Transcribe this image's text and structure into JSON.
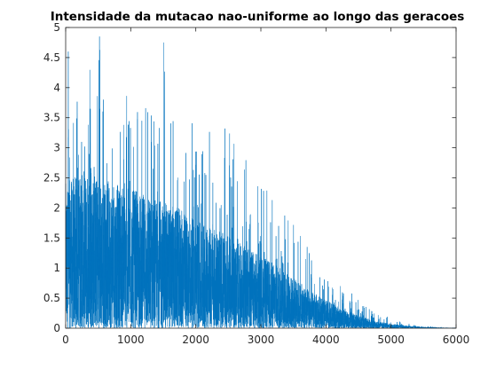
{
  "chart_data": {
    "type": "line",
    "title": "Intensidade da mutacao nao-uniforme ao longo das geracoes",
    "xlabel": "",
    "ylabel": "",
    "xlim": [
      0,
      6000
    ],
    "ylim": [
      0,
      5
    ],
    "x_ticks": [
      0,
      1000,
      2000,
      3000,
      4000,
      5000,
      6000
    ],
    "y_ticks": [
      0,
      0.5,
      1,
      1.5,
      2,
      2.5,
      3,
      3.5,
      4,
      4.5,
      5
    ],
    "x_tick_labels": [
      "0",
      "1000",
      "2000",
      "3000",
      "4000",
      "5000",
      "6000"
    ],
    "y_tick_labels": [
      "0",
      "0.5",
      "1",
      "1.5",
      "2",
      "2.5",
      "3",
      "3.5",
      "4",
      "4.5",
      "5"
    ],
    "grid": false,
    "legend": "none",
    "series": [
      {
        "color": "#0072BD",
        "description_points": {
          "x": [
            0,
            250,
            500,
            750,
            1000,
            1250,
            1500,
            1750,
            2000,
            2250,
            2500,
            2750,
            3000,
            3250,
            3500,
            3750,
            4000,
            4250,
            4500,
            4750,
            5000,
            5250,
            5500,
            5750,
            6000
          ],
          "envelope_max": [
            3.8,
            4.1,
            4.85,
            4.4,
            4.0,
            3.9,
            4.75,
            3.8,
            3.6,
            3.4,
            3.3,
            2.9,
            2.4,
            2.2,
            1.95,
            1.3,
            0.8,
            0.7,
            0.5,
            0.25,
            0.18,
            0.08,
            0.04,
            0.02,
            0.01
          ],
          "dense_band_top": [
            2.3,
            2.5,
            2.4,
            2.3,
            2.2,
            2.1,
            2.0,
            1.9,
            1.7,
            1.6,
            1.45,
            1.3,
            1.15,
            1.0,
            0.8,
            0.6,
            0.45,
            0.3,
            0.2,
            0.12,
            0.07,
            0.04,
            0.02,
            0.01,
            0.005
          ]
        },
        "annotated_peaks": [
          {
            "x": 520,
            "y": 4.85
          },
          {
            "x": 1510,
            "y": 4.75
          },
          {
            "x": 40,
            "y": 4.6
          }
        ]
      }
    ]
  }
}
